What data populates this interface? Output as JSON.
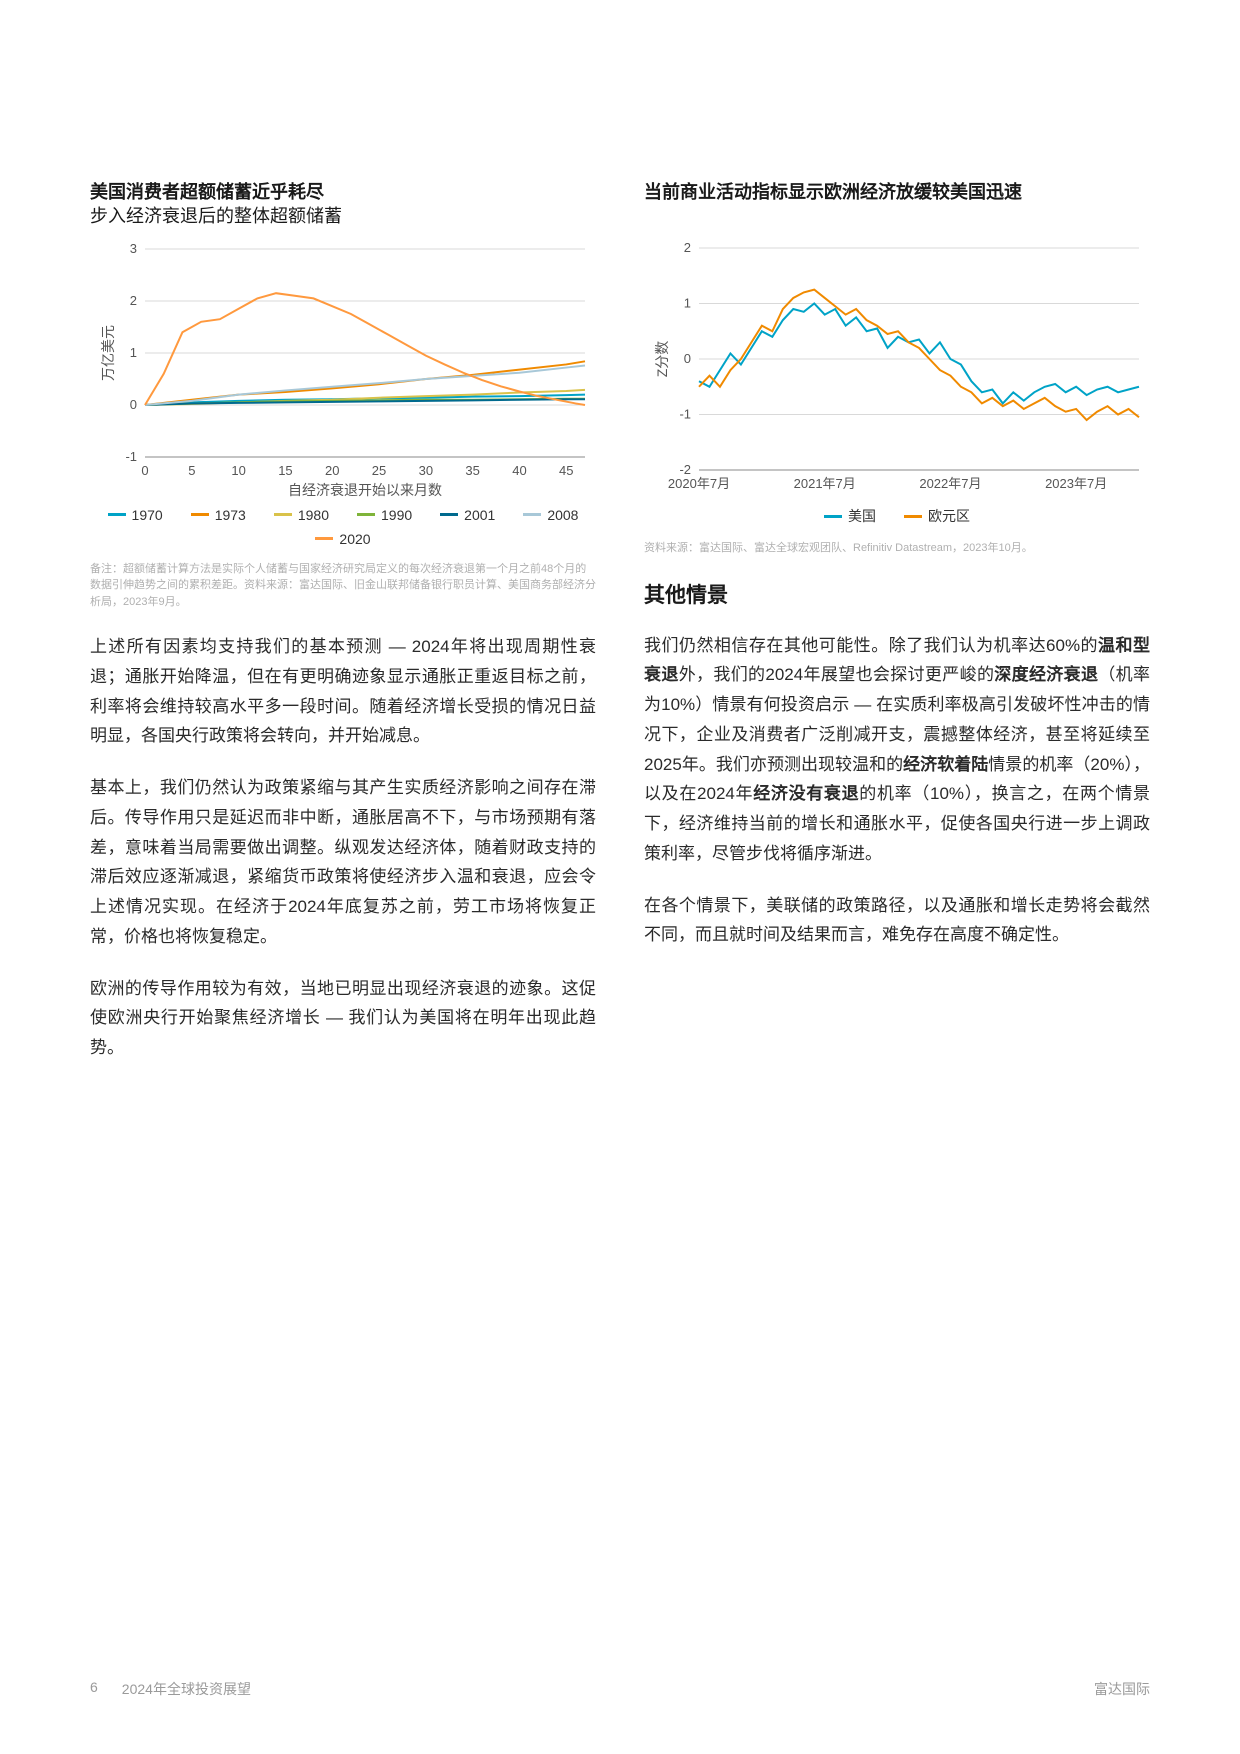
{
  "left": {
    "chart": {
      "type": "line",
      "title_bold": "美国消费者超额储蓄近乎耗尽",
      "subtitle": "步入经济衰退后的整体超额储蓄",
      "ylabel": "万亿美元",
      "xlabel": "自经济衰退开始以来月数",
      "xlim": [
        0,
        47
      ],
      "ylim": [
        -1,
        3
      ],
      "xticks": [
        0,
        5,
        10,
        15,
        20,
        25,
        30,
        35,
        40,
        45
      ],
      "yticks": [
        -1,
        0,
        1,
        2,
        3
      ],
      "grid_color": "#d9d9d9",
      "axis_color": "#888888",
      "background_color": "#ffffff",
      "tick_fontsize": 13,
      "label_fontsize": 14,
      "line_width": 2,
      "series": [
        {
          "name": "1970",
          "color": "#00a3c7",
          "values": [
            [
              0,
              0
            ],
            [
              5,
              0.05
            ],
            [
              10,
              0.08
            ],
            [
              15,
              0.1
            ],
            [
              20,
              0.11
            ],
            [
              25,
              0.13
            ],
            [
              30,
              0.14
            ],
            [
              35,
              0.16
            ],
            [
              40,
              0.17
            ],
            [
              45,
              0.19
            ],
            [
              47,
              0.2
            ]
          ]
        },
        {
          "name": "1973",
          "color": "#f08a00",
          "values": [
            [
              0,
              0
            ],
            [
              5,
              0.1
            ],
            [
              10,
              0.2
            ],
            [
              15,
              0.25
            ],
            [
              20,
              0.32
            ],
            [
              25,
              0.4
            ],
            [
              30,
              0.5
            ],
            [
              35,
              0.58
            ],
            [
              40,
              0.68
            ],
            [
              45,
              0.78
            ],
            [
              47,
              0.84
            ]
          ]
        },
        {
          "name": "1980",
          "color": "#d9c24a",
          "values": [
            [
              0,
              0
            ],
            [
              5,
              0.02
            ],
            [
              10,
              0.05
            ],
            [
              15,
              0.08
            ],
            [
              20,
              0.1
            ],
            [
              25,
              0.14
            ],
            [
              30,
              0.17
            ],
            [
              35,
              0.2
            ],
            [
              40,
              0.24
            ],
            [
              45,
              0.27
            ],
            [
              47,
              0.29
            ]
          ]
        },
        {
          "name": "1990",
          "color": "#7fb43a",
          "values": [
            [
              0,
              0
            ],
            [
              5,
              0.03
            ],
            [
              10,
              0.05
            ],
            [
              15,
              0.07
            ],
            [
              20,
              0.08
            ],
            [
              25,
              0.09
            ],
            [
              30,
              0.1
            ],
            [
              35,
              0.1
            ],
            [
              40,
              0.11
            ],
            [
              45,
              0.12
            ],
            [
              47,
              0.12
            ]
          ]
        },
        {
          "name": "2001",
          "color": "#006a8e",
          "values": [
            [
              0,
              0
            ],
            [
              5,
              0.03
            ],
            [
              10,
              0.04
            ],
            [
              15,
              0.05
            ],
            [
              20,
              0.06
            ],
            [
              25,
              0.07
            ],
            [
              30,
              0.08
            ],
            [
              35,
              0.09
            ],
            [
              40,
              0.1
            ],
            [
              45,
              0.11
            ],
            [
              47,
              0.11
            ]
          ]
        },
        {
          "name": "2008",
          "color": "#a8c8d8",
          "values": [
            [
              0,
              0
            ],
            [
              5,
              0.08
            ],
            [
              10,
              0.2
            ],
            [
              15,
              0.28
            ],
            [
              20,
              0.35
            ],
            [
              25,
              0.42
            ],
            [
              30,
              0.5
            ],
            [
              35,
              0.56
            ],
            [
              40,
              0.62
            ],
            [
              45,
              0.72
            ],
            [
              47,
              0.76
            ]
          ]
        },
        {
          "name": "2020",
          "color": "#ff993e",
          "values": [
            [
              0,
              0
            ],
            [
              2,
              0.6
            ],
            [
              4,
              1.4
            ],
            [
              6,
              1.6
            ],
            [
              8,
              1.65
            ],
            [
              10,
              1.85
            ],
            [
              12,
              2.05
            ],
            [
              14,
              2.15
            ],
            [
              16,
              2.1
            ],
            [
              18,
              2.05
            ],
            [
              20,
              1.9
            ],
            [
              22,
              1.75
            ],
            [
              24,
              1.55
            ],
            [
              26,
              1.35
            ],
            [
              28,
              1.15
            ],
            [
              30,
              0.95
            ],
            [
              32,
              0.78
            ],
            [
              34,
              0.62
            ],
            [
              36,
              0.48
            ],
            [
              38,
              0.36
            ],
            [
              40,
              0.26
            ],
            [
              42,
              0.17
            ],
            [
              44,
              0.1
            ],
            [
              46,
              0.03
            ],
            [
              47,
              0.0
            ]
          ]
        }
      ],
      "footnote": "备注：超额储蓄计算方法是实际个人储蓄与国家经济研究局定义的每次经济衰退第一个月之前48个月的数据引伸趋势之间的累积差距。资料来源：富达国际、旧金山联邦储备银行职员计算、美国商务部经济分析局，2023年9月。"
    },
    "paragraphs": [
      "上述所有因素均支持我们的基本预测 — 2024年将出现周期性衰退；通胀开始降温，但在有更明确迹象显示通胀正重返目标之前，利率将会维持较高水平多一段时间。随着经济增长受损的情况日益明显，各国央行政策将会转向，并开始减息。",
      "基本上，我们仍然认为政策紧缩与其产生实质经济影响之间存在滞后。传导作用只是延迟而非中断，通胀居高不下，与市场预期有落差，意味着当局需要做出调整。纵观发达经济体，随着财政支持的滞后效应逐渐减退，紧缩货币政策将使经济步入温和衰退，应会令上述情况实现。在经济于2024年底复苏之前，劳工市场将恢复正常，价格也将恢复稳定。",
      "欧洲的传导作用较为有效，当地已明显出现经济衰退的迹象。这促使欧洲央行开始聚焦经济增长 — 我们认为美国将在明年出现此趋势。"
    ]
  },
  "right": {
    "chart": {
      "type": "line",
      "title_bold": "当前商业活动指标显示欧洲经济放缓较美国迅速",
      "ylabel": "Z分数",
      "xlim": [
        0,
        42
      ],
      "ylim": [
        -2,
        2
      ],
      "yticks": [
        -2,
        -1,
        0,
        1,
        2
      ],
      "xtick_positions": [
        0,
        12,
        24,
        36
      ],
      "xtick_labels": [
        "2020年7月",
        "2021年7月",
        "2022年7月",
        "2023年7月"
      ],
      "grid_color": "#d9d9d9",
      "axis_color": "#888888",
      "background_color": "#ffffff",
      "tick_fontsize": 13,
      "label_fontsize": 14,
      "line_width": 2,
      "series": [
        {
          "name": "美国",
          "color": "#00a3c7",
          "values": [
            [
              0,
              -0.4
            ],
            [
              1,
              -0.5
            ],
            [
              2,
              -0.2
            ],
            [
              3,
              0.1
            ],
            [
              4,
              -0.1
            ],
            [
              5,
              0.2
            ],
            [
              6,
              0.5
            ],
            [
              7,
              0.4
            ],
            [
              8,
              0.7
            ],
            [
              9,
              0.9
            ],
            [
              10,
              0.85
            ],
            [
              11,
              1.0
            ],
            [
              12,
              0.8
            ],
            [
              13,
              0.9
            ],
            [
              14,
              0.6
            ],
            [
              15,
              0.75
            ],
            [
              16,
              0.5
            ],
            [
              17,
              0.55
            ],
            [
              18,
              0.2
            ],
            [
              19,
              0.4
            ],
            [
              20,
              0.3
            ],
            [
              21,
              0.35
            ],
            [
              22,
              0.1
            ],
            [
              23,
              0.3
            ],
            [
              24,
              0.0
            ],
            [
              25,
              -0.1
            ],
            [
              26,
              -0.4
            ],
            [
              27,
              -0.6
            ],
            [
              28,
              -0.55
            ],
            [
              29,
              -0.8
            ],
            [
              30,
              -0.6
            ],
            [
              31,
              -0.75
            ],
            [
              32,
              -0.6
            ],
            [
              33,
              -0.5
            ],
            [
              34,
              -0.45
            ],
            [
              35,
              -0.6
            ],
            [
              36,
              -0.5
            ],
            [
              37,
              -0.65
            ],
            [
              38,
              -0.55
            ],
            [
              39,
              -0.5
            ],
            [
              40,
              -0.6
            ],
            [
              41,
              -0.55
            ],
            [
              42,
              -0.5
            ]
          ]
        },
        {
          "name": "欧元区",
          "color": "#f08a00",
          "values": [
            [
              0,
              -0.5
            ],
            [
              1,
              -0.3
            ],
            [
              2,
              -0.5
            ],
            [
              3,
              -0.2
            ],
            [
              4,
              0.0
            ],
            [
              5,
              0.3
            ],
            [
              6,
              0.6
            ],
            [
              7,
              0.5
            ],
            [
              8,
              0.9
            ],
            [
              9,
              1.1
            ],
            [
              10,
              1.2
            ],
            [
              11,
              1.25
            ],
            [
              12,
              1.1
            ],
            [
              13,
              0.95
            ],
            [
              14,
              0.8
            ],
            [
              15,
              0.9
            ],
            [
              16,
              0.7
            ],
            [
              17,
              0.6
            ],
            [
              18,
              0.45
            ],
            [
              19,
              0.5
            ],
            [
              20,
              0.3
            ],
            [
              21,
              0.2
            ],
            [
              22,
              0.0
            ],
            [
              23,
              -0.2
            ],
            [
              24,
              -0.3
            ],
            [
              25,
              -0.5
            ],
            [
              26,
              -0.6
            ],
            [
              27,
              -0.8
            ],
            [
              28,
              -0.7
            ],
            [
              29,
              -0.85
            ],
            [
              30,
              -0.75
            ],
            [
              31,
              -0.9
            ],
            [
              32,
              -0.8
            ],
            [
              33,
              -0.7
            ],
            [
              34,
              -0.85
            ],
            [
              35,
              -0.95
            ],
            [
              36,
              -0.9
            ],
            [
              37,
              -1.1
            ],
            [
              38,
              -0.95
            ],
            [
              39,
              -0.85
            ],
            [
              40,
              -1.0
            ],
            [
              41,
              -0.9
            ],
            [
              42,
              -1.05
            ]
          ]
        }
      ],
      "footnote": "资料来源：富达国际、富达全球宏观团队、Refinitiv Datastream，2023年10月。"
    },
    "heading": "其他情景",
    "paragraph1_parts": [
      {
        "t": "我们仍然相信存在其他可能性。除了我们认为机率达60%的",
        "b": false
      },
      {
        "t": "温和型衰退",
        "b": true
      },
      {
        "t": "外，我们的2024年展望也会探讨更严峻的",
        "b": false
      },
      {
        "t": "深度经济衰退",
        "b": true
      },
      {
        "t": "（机率为10%）情景有何投资启示 — 在实质利率极高引发破坏性冲击的情况下，企业及消费者广泛削减开支，震撼整体经济，甚至将延续至2025年。我们亦预测出现较温和的",
        "b": false
      },
      {
        "t": "经济软着陆",
        "b": true
      },
      {
        "t": "情景的机率（20%），以及在2024年",
        "b": false
      },
      {
        "t": "经济没有衰退",
        "b": true
      },
      {
        "t": "的机率（10%），换言之，在两个情景下，经济维持当前的增长和通胀水平，促使各国央行进一步上调政策利率，尽管步伐将循序渐进。",
        "b": false
      }
    ],
    "paragraph2": "在各个情景下，美联储的政策路径，以及通胀和增长走势将会截然不同，而且就时间及结果而言，难免存在高度不确定性。"
  },
  "footer": {
    "page": "6",
    "doc_title": "2024年全球投资展望",
    "brand": "富达国际"
  }
}
